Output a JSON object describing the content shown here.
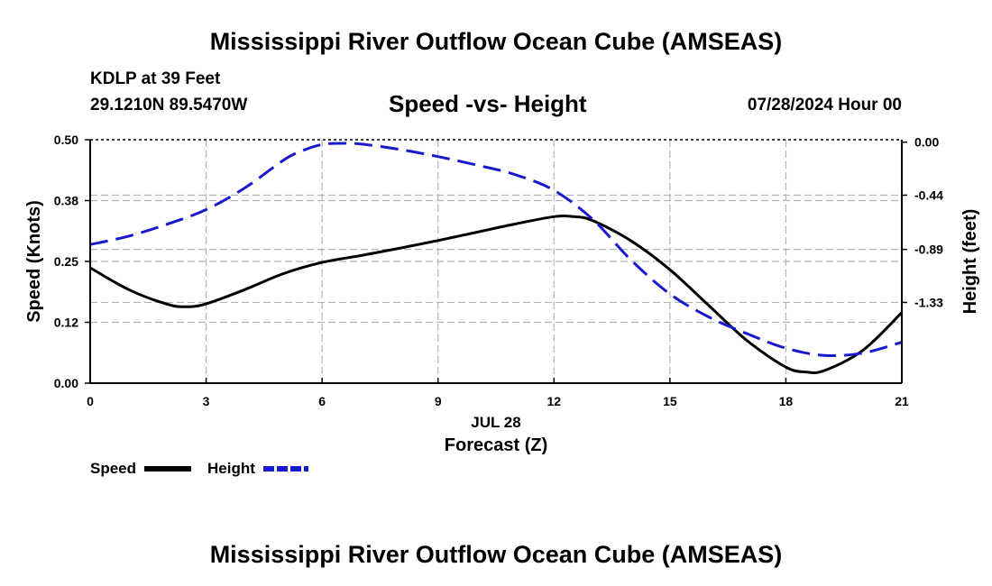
{
  "header": {
    "title": "Mississippi River Outflow Ocean Cube (AMSEAS)",
    "station": "KDLP at 39 Feet",
    "coords": "29.1210N  89.5470W",
    "subtitle": "Speed -vs- Height",
    "datetime": "07/28/2024 Hour 00",
    "footer_title": "Mississippi River Outflow Ocean Cube (AMSEAS)"
  },
  "legend": {
    "speed_label": "Speed",
    "height_label": "Height"
  },
  "colors": {
    "speed": "#000000",
    "height": "#1a1acc",
    "grid": "#b4b4b4"
  },
  "chart_data": {
    "type": "line",
    "title": "Speed -vs- Height",
    "xlabel": "Forecast (Z)",
    "x_date_label": "JUL 28",
    "ylabel_left": "Speed (Knots)",
    "ylabel_right": "Height (feet)",
    "xlim": [
      0,
      21
    ],
    "ylim_left": [
      0,
      0.5
    ],
    "ylim_right": [
      -2.0,
      0.02
    ],
    "x_ticks": [
      0,
      3,
      6,
      9,
      12,
      15,
      18,
      21
    ],
    "x_tick_labels": [
      "0",
      "3",
      "6",
      "9",
      "12",
      "15",
      "18",
      "21"
    ],
    "y_left_ticks": [
      0.0,
      0.125,
      0.25,
      0.375,
      0.5
    ],
    "y_left_tick_labels": [
      "0.00",
      "0.12",
      "0.25",
      "0.38",
      "0.50"
    ],
    "y_right_ticks": [
      0.0,
      -0.44,
      -0.89,
      -1.33
    ],
    "y_right_tick_labels": [
      "0.00",
      "-0.44",
      "-0.89",
      "-1.33"
    ],
    "grid": true,
    "series": [
      {
        "name": "Speed",
        "axis": "left",
        "style": "solid",
        "x": [
          0,
          1,
          2,
          2.5,
          3,
          4,
          5,
          6,
          7,
          8,
          9,
          10,
          11,
          12,
          12.5,
          13,
          14,
          15,
          16,
          17,
          18,
          18.5,
          19,
          20,
          21
        ],
        "values": [
          0.237,
          0.192,
          0.162,
          0.157,
          0.163,
          0.192,
          0.225,
          0.248,
          0.262,
          0.277,
          0.293,
          0.31,
          0.327,
          0.342,
          0.342,
          0.334,
          0.292,
          0.233,
          0.16,
          0.087,
          0.033,
          0.023,
          0.026,
          0.068,
          0.145
        ]
      },
      {
        "name": "Height",
        "axis": "right",
        "style": "dashed",
        "x": [
          0,
          1,
          2,
          3,
          4,
          5,
          5.5,
          6,
          6.5,
          7,
          8,
          9,
          10,
          11,
          12,
          13,
          14,
          15,
          16,
          17,
          18,
          19,
          20,
          21
        ],
        "values": [
          -0.85,
          -0.78,
          -0.68,
          -0.56,
          -0.38,
          -0.15,
          -0.07,
          -0.02,
          -0.01,
          -0.015,
          -0.06,
          -0.12,
          -0.19,
          -0.27,
          -0.4,
          -0.64,
          -0.98,
          -1.26,
          -1.45,
          -1.59,
          -1.71,
          -1.77,
          -1.75,
          -1.66
        ]
      }
    ]
  }
}
